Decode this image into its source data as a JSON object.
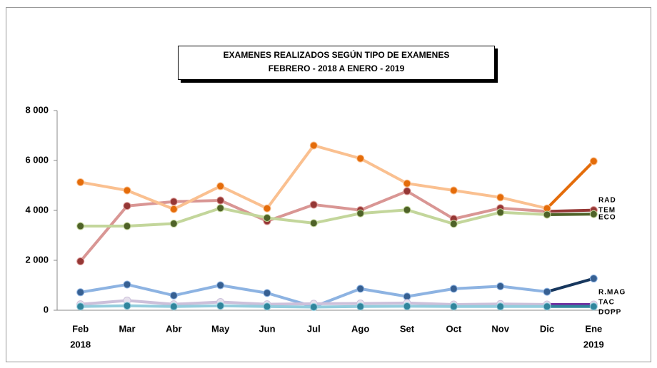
{
  "chart_data": {
    "type": "line",
    "title": "EXAMENES REALIZADOS SEGÚN TIPO DE EXAMENES",
    "subtitle": "FEBRERO - 2018 A ENERO - 2019",
    "categories": [
      "Feb",
      "Mar",
      "Abr",
      "May",
      "Jun",
      "Jul",
      "Ago",
      "Set",
      "Oct",
      "Nov",
      "Dic",
      "Ene"
    ],
    "annotations": [
      "2018",
      "2019"
    ],
    "ylim": [
      0,
      8000
    ],
    "yticks": [
      0,
      {
        "value": 2000,
        "label": "2 000"
      },
      {
        "value": 4000,
        "label": "4 000"
      },
      {
        "value": 6000,
        "label": "6 000"
      },
      {
        "value": 8000,
        "label": "8 000"
      }
    ],
    "grid": false,
    "series": [
      {
        "name": "RAD",
        "color": "#d99694",
        "marker_color": "#953735",
        "highlight_color": "#953735",
        "values": [
          1960,
          4180,
          4350,
          4400,
          3570,
          4230,
          4010,
          4770,
          3660,
          4090,
          3960,
          4010
        ]
      },
      {
        "name": "TEM",
        "color": "#fac090",
        "marker_color": "#e46c0a",
        "highlight_color": "#e46c0a",
        "values": [
          5130,
          4800,
          4050,
          4970,
          4080,
          6600,
          6080,
          5080,
          4800,
          4520,
          4080,
          5970
        ]
      },
      {
        "name": "ECO",
        "color": "#c3d69b",
        "marker_color": "#4f6228",
        "highlight_color": "#4f6228",
        "values": [
          3370,
          3370,
          3470,
          4090,
          3700,
          3490,
          3880,
          4020,
          3460,
          3920,
          3830,
          3850
        ]
      },
      {
        "name": "R.MAG",
        "color": "#8db3e2",
        "marker_color": "#376092",
        "highlight_color": "#17375e",
        "values": [
          720,
          1030,
          590,
          1000,
          690,
          140,
          860,
          550,
          860,
          960,
          740,
          1270
        ]
      },
      {
        "name": "TAC",
        "color": "#ccc0da",
        "marker_color": "#e6e0ec",
        "highlight_color": "#7030a0",
        "values": [
          240,
          390,
          240,
          330,
          240,
          260,
          270,
          290,
          230,
          250,
          230,
          230
        ]
      },
      {
        "name": "DOPP",
        "color": "#93cddd",
        "marker_color": "#31859c",
        "highlight_color": "#31859c",
        "values": [
          150,
          180,
          150,
          180,
          150,
          130,
          150,
          160,
          150,
          150,
          150,
          150
        ]
      }
    ]
  }
}
